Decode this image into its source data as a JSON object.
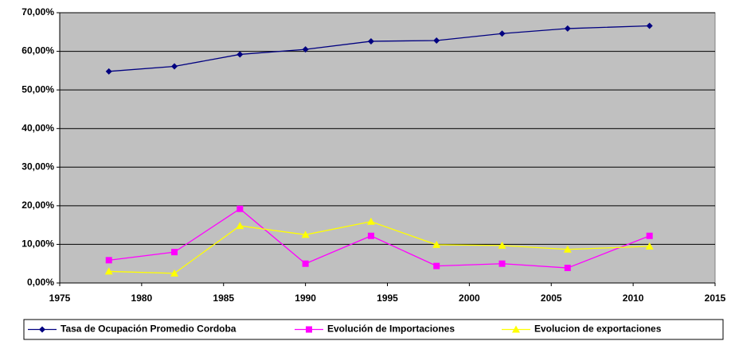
{
  "chart_data": {
    "type": "line",
    "x": [
      1978,
      1982,
      1986,
      1990,
      1994,
      1998,
      2002,
      2006,
      2011
    ],
    "series": [
      {
        "name": "Tasa de Ocupación Promedio Cordoba",
        "color": "#000080",
        "marker": "diamond",
        "values": [
          54.8,
          56.1,
          59.2,
          60.5,
          62.6,
          62.8,
          64.6,
          65.9,
          66.6
        ]
      },
      {
        "name": "Evolución de Importaciones",
        "color": "#ff00ff",
        "marker": "square",
        "values": [
          5.9,
          8.0,
          19.2,
          5.0,
          12.2,
          4.4,
          5.0,
          3.9,
          12.2
        ]
      },
      {
        "name": "Evolucion de exportaciones",
        "color": "#ffff00",
        "marker": "triangle",
        "values": [
          3.0,
          2.5,
          14.8,
          12.5,
          15.9,
          9.9,
          9.7,
          8.7,
          9.5
        ]
      }
    ],
    "xlim": [
      1975,
      2015
    ],
    "xticks": [
      1975,
      1980,
      1985,
      1990,
      1995,
      2000,
      2005,
      2010,
      2015
    ],
    "ylim": [
      0,
      70
    ],
    "yticks": [
      {
        "value": 0,
        "label": "0,00%"
      },
      {
        "value": 10,
        "label": "10,00%"
      },
      {
        "value": 20,
        "label": "20,00%"
      },
      {
        "value": 30,
        "label": "30,00%"
      },
      {
        "value": 40,
        "label": "40,00%"
      },
      {
        "value": 50,
        "label": "50,00%"
      },
      {
        "value": 60,
        "label": "60,00%"
      },
      {
        "value": 70,
        "label": "70,00%"
      }
    ],
    "grid": true,
    "legend": "bottom"
  }
}
